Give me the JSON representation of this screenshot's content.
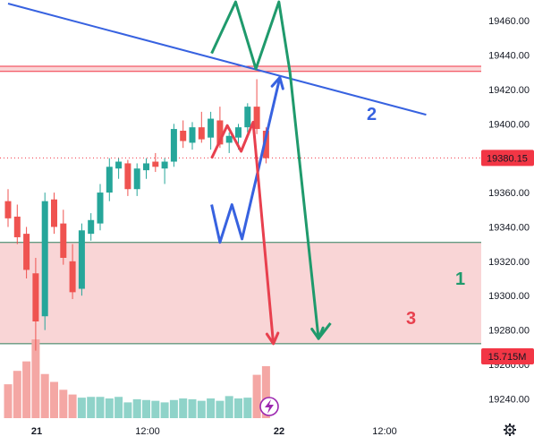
{
  "colors": {
    "up": "#26a69a",
    "down": "#ef5350",
    "vol_up": "#8fd3c9",
    "vol_down": "#f4a7a4",
    "blue": "#3762e0",
    "red_line": "#e8404e",
    "green_line": "#1f9a6c",
    "zone_fill": "#f9d5d6",
    "price_tag": "#f23645",
    "border_green": "#2e7d5b"
  },
  "price_axis": {
    "ticks": [
      "19460.00",
      "19440.00",
      "19420.00",
      "19400.00",
      "19380.00",
      "19360.00",
      "19340.00",
      "19320.00",
      "19300.00",
      "19280.00",
      "19260.00",
      "19240.00"
    ],
    "current_price": "19380.15",
    "volume_label": "15.715M"
  },
  "time_axis": {
    "labels": [
      "21",
      "12:00",
      "22",
      "12:00"
    ]
  },
  "wave_labels": {
    "one": "1",
    "two": "2",
    "three": "3"
  },
  "icons": {
    "lightning": "lightning-icon",
    "settings": "gear-icon"
  },
  "chart_data": {
    "type": "candlestick",
    "ylim": [
      19236,
      19470
    ],
    "levels": {
      "resistance_top": 19433.5,
      "resistance_bottom": 19430.5,
      "zone_top": 19331,
      "zone_bottom": 19272,
      "current": 19380.15
    },
    "candles": [
      {
        "o": 19355,
        "h": 19362,
        "l": 19340,
        "c": 19345
      },
      {
        "o": 19346,
        "h": 19353,
        "l": 19330,
        "c": 19334
      },
      {
        "o": 19336,
        "h": 19340,
        "l": 19310,
        "c": 19315
      },
      {
        "o": 19313,
        "h": 19322,
        "l": 19268,
        "c": 19285
      },
      {
        "o": 19288,
        "h": 19360,
        "l": 19280,
        "c": 19355
      },
      {
        "o": 19356,
        "h": 19360,
        "l": 19336,
        "c": 19340
      },
      {
        "o": 19342,
        "h": 19350,
        "l": 19318,
        "c": 19322
      },
      {
        "o": 19320,
        "h": 19330,
        "l": 19298,
        "c": 19302
      },
      {
        "o": 19304,
        "h": 19342,
        "l": 19300,
        "c": 19338
      },
      {
        "o": 19336,
        "h": 19348,
        "l": 19332,
        "c": 19344
      },
      {
        "o": 19342,
        "h": 19365,
        "l": 19338,
        "c": 19360
      },
      {
        "o": 19360,
        "h": 19380,
        "l": 19355,
        "c": 19375
      },
      {
        "o": 19374,
        "h": 19380,
        "l": 19368,
        "c": 19378
      },
      {
        "o": 19377,
        "h": 19379,
        "l": 19358,
        "c": 19362
      },
      {
        "o": 19362,
        "h": 19377,
        "l": 19358,
        "c": 19374
      },
      {
        "o": 19373,
        "h": 19380,
        "l": 19368,
        "c": 19377
      },
      {
        "o": 19378,
        "h": 19383,
        "l": 19372,
        "c": 19375
      },
      {
        "o": 19374,
        "h": 19380,
        "l": 19365,
        "c": 19378
      },
      {
        "o": 19378,
        "h": 19400,
        "l": 19375,
        "c": 19397
      },
      {
        "o": 19396,
        "h": 19402,
        "l": 19386,
        "c": 19390
      },
      {
        "o": 19389,
        "h": 19401,
        "l": 19385,
        "c": 19398
      },
      {
        "o": 19398,
        "h": 19407,
        "l": 19389,
        "c": 19391
      },
      {
        "o": 19392,
        "h": 19407,
        "l": 19385,
        "c": 19403
      },
      {
        "o": 19402,
        "h": 19410,
        "l": 19386,
        "c": 19388
      },
      {
        "o": 19389,
        "h": 19395,
        "l": 19383,
        "c": 19393
      },
      {
        "o": 19392,
        "h": 19400,
        "l": 19385,
        "c": 19398
      },
      {
        "o": 19398,
        "h": 19412,
        "l": 19395,
        "c": 19410
      },
      {
        "o": 19410,
        "h": 19426,
        "l": 19394,
        "c": 19397
      },
      {
        "o": 19396,
        "h": 19398,
        "l": 19377,
        "c": 19380
      }
    ],
    "volume": [
      {
        "v": 0.43,
        "up": false
      },
      {
        "v": 0.6,
        "up": false
      },
      {
        "v": 0.72,
        "up": false
      },
      {
        "v": 1.0,
        "up": false
      },
      {
        "v": 0.56,
        "up": false
      },
      {
        "v": 0.46,
        "up": false
      },
      {
        "v": 0.36,
        "up": false
      },
      {
        "v": 0.3,
        "up": false
      },
      {
        "v": 0.26,
        "up": true
      },
      {
        "v": 0.27,
        "up": true
      },
      {
        "v": 0.27,
        "up": true
      },
      {
        "v": 0.25,
        "up": true
      },
      {
        "v": 0.27,
        "up": true
      },
      {
        "v": 0.2,
        "up": true
      },
      {
        "v": 0.24,
        "up": true
      },
      {
        "v": 0.23,
        "up": true
      },
      {
        "v": 0.22,
        "up": true
      },
      {
        "v": 0.2,
        "up": true
      },
      {
        "v": 0.23,
        "up": true
      },
      {
        "v": 0.25,
        "up": true
      },
      {
        "v": 0.24,
        "up": true
      },
      {
        "v": 0.22,
        "up": true
      },
      {
        "v": 0.25,
        "up": true
      },
      {
        "v": 0.22,
        "up": true
      },
      {
        "v": 0.28,
        "up": true
      },
      {
        "v": 0.25,
        "up": true
      },
      {
        "v": 0.26,
        "up": true
      },
      {
        "v": 0.55,
        "up": false
      },
      {
        "v": 0.66,
        "up": false
      }
    ],
    "trendline": {
      "from": [
        0,
        19470
      ],
      "to": [
        29.85,
        19416
      ]
    },
    "projections": {
      "green": [
        [
          22.1,
          19441
        ],
        [
          24.7,
          19471
        ],
        [
          26.9,
          19432
        ],
        [
          29.4,
          19471
        ],
        [
          30.6,
          19430
        ],
        [
          33.7,
          19275
        ],
        [
          35.0,
          19284
        ]
      ],
      "blue": [
        [
          22.1,
          19353
        ],
        [
          23.0,
          19331
        ],
        [
          24.3,
          19353
        ],
        [
          25.4,
          19333
        ],
        [
          29.5,
          19427
        ]
      ],
      "red": [
        [
          22.1,
          19380
        ],
        [
          23.8,
          19399
        ],
        [
          25.3,
          19384
        ],
        [
          26.6,
          19401
        ],
        [
          28.8,
          19272
        ]
      ]
    }
  }
}
